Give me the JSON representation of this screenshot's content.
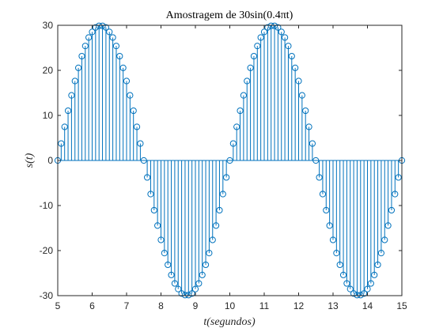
{
  "chart_data": {
    "type": "stem",
    "title": "Amostragem de 30sin(0.4πt)",
    "xlabel": "t(segundos)",
    "ylabel": "s(t)",
    "xlim": [
      5,
      15
    ],
    "ylim": [
      -30,
      30
    ],
    "xticks": [
      "5",
      "6",
      "7",
      "8",
      "9",
      "10",
      "11",
      "12",
      "13",
      "14",
      "15"
    ],
    "yticks": [
      "30",
      "20",
      "10",
      "0",
      "-10",
      "-20",
      "-30"
    ],
    "grid": false,
    "colors": {
      "series": "#0072BD",
      "axes": "#262626"
    },
    "series": [
      {
        "marker": "open-circle",
        "x": [
          5.0,
          5.1,
          5.2,
          5.3,
          5.4,
          5.5,
          5.6,
          5.7,
          5.8,
          5.9,
          6.0,
          6.1,
          6.2,
          6.3,
          6.4,
          6.5,
          6.6,
          6.7,
          6.8,
          6.9,
          7.0,
          7.1,
          7.2,
          7.3,
          7.4,
          7.5,
          7.6,
          7.7,
          7.8,
          7.9,
          8.0,
          8.1,
          8.2,
          8.3,
          8.4,
          8.5,
          8.6,
          8.7,
          8.8,
          8.9,
          9.0,
          9.1,
          9.2,
          9.3,
          9.4,
          9.5,
          9.6,
          9.7,
          9.8,
          9.9,
          10.0,
          10.1,
          10.2,
          10.3,
          10.4,
          10.5,
          10.6,
          10.7,
          10.8,
          10.9,
          11.0,
          11.1,
          11.2,
          11.3,
          11.4,
          11.5,
          11.6,
          11.7,
          11.8,
          11.9,
          12.0,
          12.1,
          12.2,
          12.3,
          12.4,
          12.5,
          12.6,
          12.7,
          12.8,
          12.9,
          13.0,
          13.1,
          13.2,
          13.3,
          13.4,
          13.5,
          13.6,
          13.7,
          13.8,
          13.9,
          14.0,
          14.1,
          14.2,
          14.3,
          14.4,
          14.5,
          14.6,
          14.7,
          14.8,
          14.9,
          15.0
        ],
        "y": [
          0,
          3.76,
          7.46,
          11.04,
          14.45,
          17.63,
          20.55,
          23.15,
          25.41,
          27.29,
          28.53,
          29.53,
          29.88,
          29.88,
          29.53,
          28.53,
          27.29,
          25.41,
          23.15,
          20.55,
          17.63,
          14.45,
          11.04,
          7.46,
          3.76,
          0,
          -3.76,
          -7.46,
          -11.04,
          -14.45,
          -17.63,
          -20.55,
          -23.15,
          -25.41,
          -27.29,
          -28.53,
          -29.53,
          -29.88,
          -29.88,
          -29.53,
          -28.53,
          -27.29,
          -25.41,
          -23.15,
          -20.55,
          -17.63,
          -14.45,
          -11.04,
          -7.46,
          -3.76,
          0,
          3.76,
          7.46,
          11.04,
          14.45,
          17.63,
          20.55,
          23.15,
          25.41,
          27.29,
          28.53,
          29.53,
          29.88,
          29.88,
          29.53,
          28.53,
          27.29,
          25.41,
          23.15,
          20.55,
          17.63,
          14.45,
          11.04,
          7.46,
          3.76,
          0,
          -3.76,
          -7.46,
          -11.04,
          -14.45,
          -17.63,
          -20.55,
          -23.15,
          -25.41,
          -27.29,
          -28.53,
          -29.53,
          -29.88,
          -29.88,
          -29.53,
          -28.53,
          -27.29,
          -25.41,
          -23.15,
          -20.55,
          -17.63,
          -14.45,
          -11.04,
          -7.46,
          -3.76,
          0
        ]
      }
    ]
  }
}
